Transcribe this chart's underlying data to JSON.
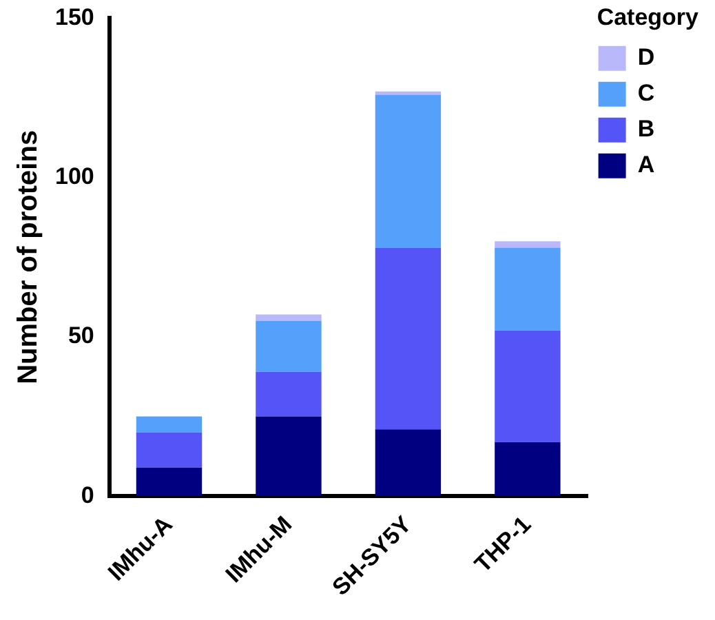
{
  "chart_data": {
    "type": "bar",
    "stacked": true,
    "ylabel": "Number of proteins",
    "legend_title": "Category",
    "legend": "top right",
    "categories": [
      "IMhu-A",
      "IMhu-M",
      "SH-SY5Y",
      "THP-1"
    ],
    "series": [
      {
        "name": "A",
        "color": "#000080",
        "values": [
          9,
          25,
          21,
          17
        ]
      },
      {
        "name": "B",
        "color": "#5555f7",
        "values": [
          11,
          14,
          57,
          35
        ]
      },
      {
        "name": "C",
        "color": "#55a0fa",
        "values": [
          5,
          16,
          48,
          26
        ]
      },
      {
        "name": "D",
        "color": "#b8b8fa",
        "values": [
          0,
          2,
          1,
          2
        ]
      }
    ],
    "ylim": [
      0,
      150
    ],
    "yticks": [
      0,
      50,
      100,
      150
    ],
    "grid": false
  }
}
